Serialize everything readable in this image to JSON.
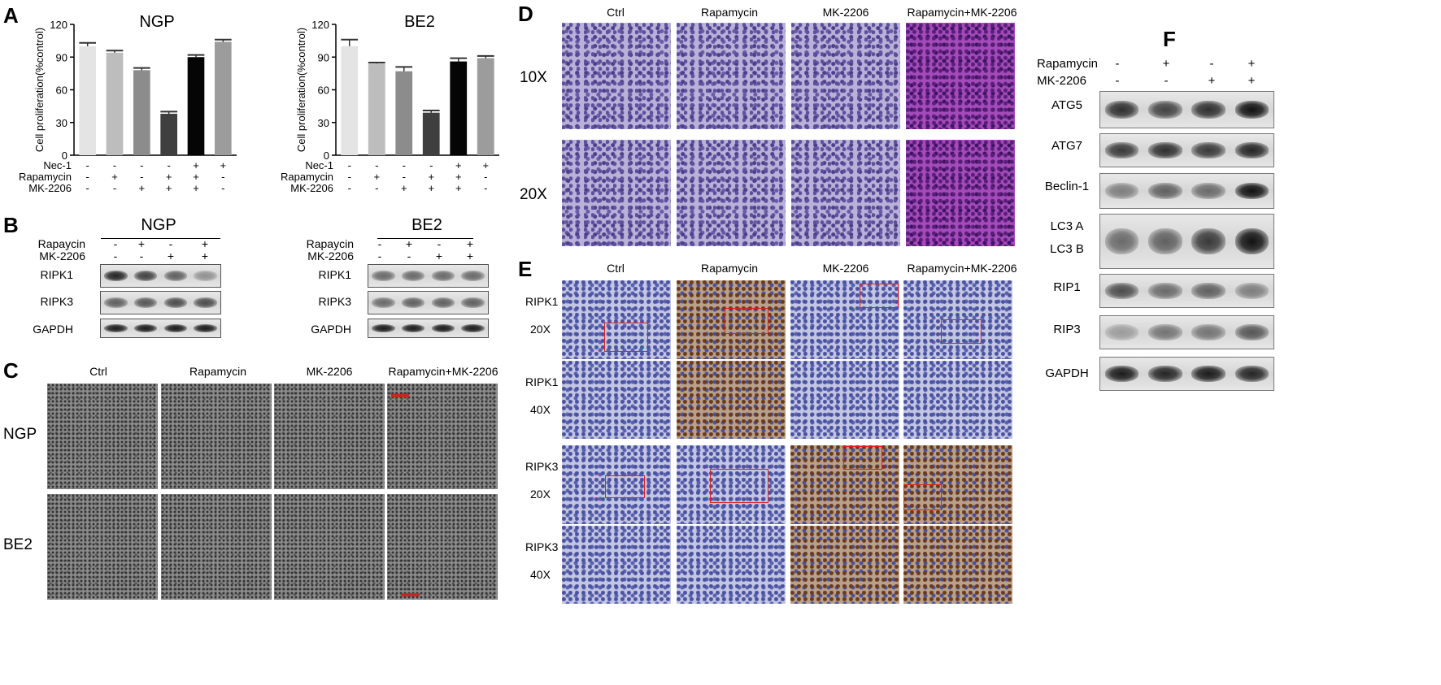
{
  "panels": {
    "A": "A",
    "B": "B",
    "C": "C",
    "D": "D",
    "E": "E",
    "F": "F"
  },
  "chart_data": [
    {
      "type": "bar",
      "title": "NGP",
      "ylabel": "Cell proliferation(%control)",
      "ylim": [
        0,
        120
      ],
      "yticks": [
        "0",
        "30",
        "60",
        "90",
        "120"
      ],
      "values": [
        100,
        94,
        78,
        38,
        90,
        104
      ],
      "errors": [
        3,
        2,
        2,
        2,
        2,
        2
      ],
      "colors": [
        "#e4e4e4",
        "#bdbdbd",
        "#8c8c8c",
        "#3f3f3f",
        "#050505",
        "#9c9c9c"
      ],
      "treatments": [
        {
          "name": "Nec-1",
          "signs": [
            "-",
            "-",
            "-",
            "-",
            "+",
            "+"
          ]
        },
        {
          "name": "Rapamycin",
          "signs": [
            "-",
            "+",
            "-",
            "+",
            "+",
            "-"
          ]
        },
        {
          "name": "MK-2206",
          "signs": [
            "-",
            "-",
            "+",
            "+",
            "+",
            "-"
          ]
        }
      ]
    },
    {
      "type": "bar",
      "title": "BE2",
      "ylabel": "Cell proliferation(%control)",
      "ylim": [
        0,
        120
      ],
      "yticks": [
        "0",
        "30",
        "60",
        "90",
        "120"
      ],
      "values": [
        100,
        84,
        77,
        39,
        86,
        89
      ],
      "errors": [
        6,
        1,
        4,
        2,
        3,
        2
      ],
      "colors": [
        "#e4e4e4",
        "#bdbdbd",
        "#8c8c8c",
        "#3f3f3f",
        "#050505",
        "#9c9c9c"
      ],
      "treatments": [
        {
          "name": "Nec-1",
          "signs": [
            "-",
            "-",
            "-",
            "-",
            "+",
            "+"
          ]
        },
        {
          "name": "Rapamycin",
          "signs": [
            "-",
            "+",
            "-",
            "+",
            "+",
            "-"
          ]
        },
        {
          "name": "MK-2206",
          "signs": [
            "-",
            "-",
            "+",
            "+",
            "+",
            "-"
          ]
        }
      ]
    }
  ],
  "panelB": {
    "ngp": {
      "title": "NGP",
      "rapa_label": "Rapaycin",
      "mk_label": "MK-2206",
      "rapa": [
        "-",
        "+",
        "-",
        "+"
      ],
      "mk": [
        "-",
        "-",
        "+",
        "+"
      ],
      "rows": [
        "RIPK1",
        "RIPK3",
        "GAPDH"
      ]
    },
    "be2": {
      "title": "BE2",
      "rapa_label": "Rapaycin",
      "mk_label": "MK-2206",
      "rapa": [
        "-",
        "+",
        "-",
        "+"
      ],
      "mk": [
        "-",
        "-",
        "+",
        "+"
      ],
      "rows": [
        "RIPK1",
        "RIPK3",
        "GAPDH"
      ]
    }
  },
  "panelC": {
    "cols": [
      "Ctrl",
      "Rapamycin",
      "MK-2206",
      "Rapamycin+MK-2206"
    ],
    "rows": [
      "NGP",
      "BE2"
    ]
  },
  "panelD": {
    "cols": [
      "Ctrl",
      "Rapamycin",
      "MK-2206",
      "Rapamycin+MK-2206"
    ],
    "rows": [
      "10X",
      "20X"
    ]
  },
  "panelE": {
    "cols": [
      "Ctrl",
      "Rapamycin",
      "MK-2206",
      "Rapamycin+MK-2206"
    ],
    "rows": [
      {
        "a": "RIPK1",
        "b": "20X"
      },
      {
        "a": "RIPK1",
        "b": "40X"
      },
      {
        "a": "RIPK3",
        "b": "20X"
      },
      {
        "a": "RIPK3",
        "b": "40X"
      }
    ]
  },
  "panelF": {
    "rapa_label": "Rapamycin",
    "mk_label": "MK-2206",
    "rapa": [
      "-",
      "+",
      "-",
      "+"
    ],
    "mk": [
      "-",
      "-",
      "+",
      "+"
    ],
    "rows": [
      "ATG5",
      "ATG7",
      "Beclin-1",
      "LC3 A",
      "LC3 B",
      "RIP1",
      "RIP3",
      "GAPDH"
    ]
  }
}
